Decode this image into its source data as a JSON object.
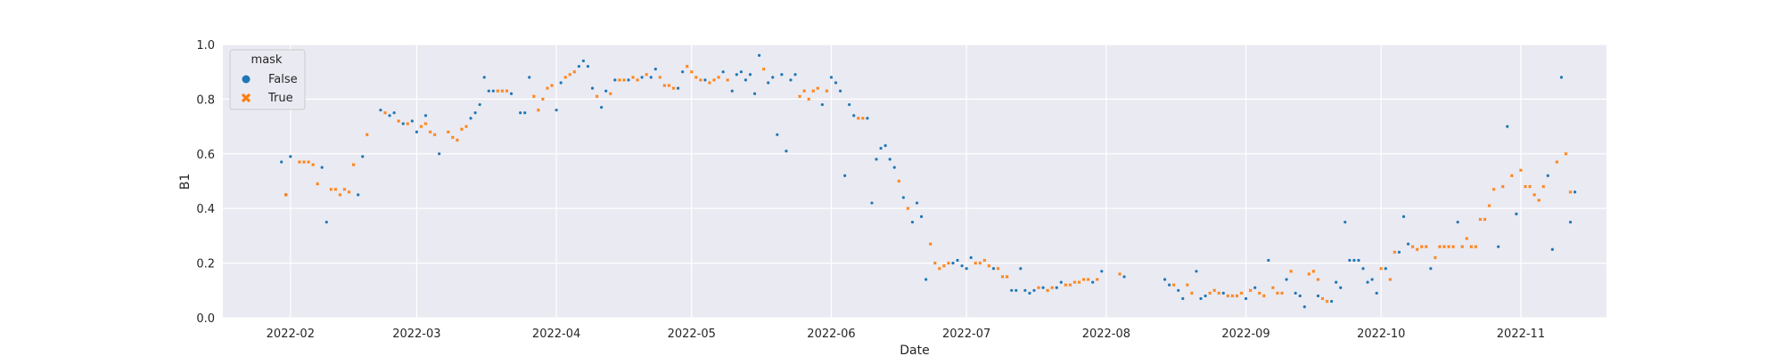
{
  "colors": {
    "false": "#1f77b4",
    "true": "#ff7f0e",
    "panel": "#eaeaf2",
    "grid": "#ffffff",
    "text": "#262626"
  },
  "chart_data": {
    "type": "scatter",
    "title": "",
    "xlabel": "Date",
    "ylabel": "B1",
    "xlim": [
      "2022-01-17",
      "2022-11-20"
    ],
    "ylim": [
      0,
      1
    ],
    "x_ticks": [
      "2022-02",
      "2022-03",
      "2022-04",
      "2022-05",
      "2022-06",
      "2022-07",
      "2022-08",
      "2022-09",
      "2022-10",
      "2022-11"
    ],
    "y_ticks": [
      "0.0",
      "0.2",
      "0.4",
      "0.6",
      "0.8",
      "1.0"
    ],
    "grid": true,
    "legend": {
      "title": "mask",
      "placement": "top-left",
      "entries": [
        "False",
        "True"
      ]
    },
    "series": [
      {
        "name": "False",
        "marker": "circle",
        "color": "#1f77b4",
        "points": [
          [
            "2022-01-30",
            0.57
          ],
          [
            "2022-01-31",
            0.45
          ],
          [
            "2022-02-01",
            0.59
          ],
          [
            "2022-02-08",
            0.55
          ],
          [
            "2022-02-09",
            0.35
          ],
          [
            "2022-02-16",
            0.45
          ],
          [
            "2022-02-17",
            0.59
          ],
          [
            "2022-02-21",
            0.76
          ],
          [
            "2022-02-23",
            0.74
          ],
          [
            "2022-02-24",
            0.75
          ],
          [
            "2022-02-26",
            0.71
          ],
          [
            "2022-02-28",
            0.72
          ],
          [
            "2022-03-01",
            0.68
          ],
          [
            "2022-03-03",
            0.74
          ],
          [
            "2022-03-06",
            0.6
          ],
          [
            "2022-03-13",
            0.73
          ],
          [
            "2022-03-14",
            0.75
          ],
          [
            "2022-03-15",
            0.78
          ],
          [
            "2022-03-16",
            0.88
          ],
          [
            "2022-03-17",
            0.83
          ],
          [
            "2022-03-18",
            0.83
          ],
          [
            "2022-03-22",
            0.82
          ],
          [
            "2022-03-24",
            0.75
          ],
          [
            "2022-03-25",
            0.75
          ],
          [
            "2022-03-26",
            0.88
          ],
          [
            "2022-04-01",
            0.76
          ],
          [
            "2022-04-02",
            0.86
          ],
          [
            "2022-04-06",
            0.92
          ],
          [
            "2022-04-07",
            0.94
          ],
          [
            "2022-04-08",
            0.92
          ],
          [
            "2022-04-09",
            0.84
          ],
          [
            "2022-04-11",
            0.77
          ],
          [
            "2022-04-12",
            0.83
          ],
          [
            "2022-04-14",
            0.87
          ],
          [
            "2022-04-17",
            0.87
          ],
          [
            "2022-04-20",
            0.88
          ],
          [
            "2022-04-22",
            0.88
          ],
          [
            "2022-04-23",
            0.91
          ],
          [
            "2022-04-28",
            0.84
          ],
          [
            "2022-04-29",
            0.9
          ],
          [
            "2022-05-04",
            0.87
          ],
          [
            "2022-05-08",
            0.9
          ],
          [
            "2022-05-10",
            0.83
          ],
          [
            "2022-05-11",
            0.89
          ],
          [
            "2022-05-12",
            0.9
          ],
          [
            "2022-05-13",
            0.87
          ],
          [
            "2022-05-14",
            0.89
          ],
          [
            "2022-05-15",
            0.82
          ],
          [
            "2022-05-16",
            0.96
          ],
          [
            "2022-05-18",
            0.86
          ],
          [
            "2022-05-19",
            0.88
          ],
          [
            "2022-05-20",
            0.67
          ],
          [
            "2022-05-21",
            0.89
          ],
          [
            "2022-05-22",
            0.61
          ],
          [
            "2022-05-23",
            0.87
          ],
          [
            "2022-05-24",
            0.89
          ],
          [
            "2022-05-30",
            0.78
          ],
          [
            "2022-06-01",
            0.88
          ],
          [
            "2022-06-02",
            0.86
          ],
          [
            "2022-06-03",
            0.83
          ],
          [
            "2022-06-04",
            0.52
          ],
          [
            "2022-06-05",
            0.78
          ],
          [
            "2022-06-06",
            0.74
          ],
          [
            "2022-06-09",
            0.73
          ],
          [
            "2022-06-10",
            0.42
          ],
          [
            "2022-06-11",
            0.58
          ],
          [
            "2022-06-12",
            0.62
          ],
          [
            "2022-06-13",
            0.63
          ],
          [
            "2022-06-14",
            0.58
          ],
          [
            "2022-06-15",
            0.55
          ],
          [
            "2022-06-17",
            0.44
          ],
          [
            "2022-06-19",
            0.35
          ],
          [
            "2022-06-20",
            0.42
          ],
          [
            "2022-06-21",
            0.37
          ],
          [
            "2022-06-22",
            0.14
          ],
          [
            "2022-06-28",
            0.2
          ],
          [
            "2022-06-29",
            0.21
          ],
          [
            "2022-06-30",
            0.19
          ],
          [
            "2022-07-01",
            0.18
          ],
          [
            "2022-07-02",
            0.22
          ],
          [
            "2022-07-07",
            0.18
          ],
          [
            "2022-07-11",
            0.1
          ],
          [
            "2022-07-12",
            0.1
          ],
          [
            "2022-07-13",
            0.18
          ],
          [
            "2022-07-14",
            0.1
          ],
          [
            "2022-07-15",
            0.09
          ],
          [
            "2022-07-16",
            0.1
          ],
          [
            "2022-07-18",
            0.11
          ],
          [
            "2022-07-21",
            0.11
          ],
          [
            "2022-07-22",
            0.13
          ],
          [
            "2022-07-29",
            0.13
          ],
          [
            "2022-07-31",
            0.17
          ],
          [
            "2022-08-05",
            0.15
          ],
          [
            "2022-08-14",
            0.14
          ],
          [
            "2022-08-15",
            0.12
          ],
          [
            "2022-08-17",
            0.1
          ],
          [
            "2022-08-18",
            0.07
          ],
          [
            "2022-08-21",
            0.17
          ],
          [
            "2022-08-22",
            0.07
          ],
          [
            "2022-08-23",
            0.08
          ],
          [
            "2022-08-27",
            0.09
          ],
          [
            "2022-09-01",
            0.07
          ],
          [
            "2022-09-03",
            0.11
          ],
          [
            "2022-09-06",
            0.21
          ],
          [
            "2022-09-10",
            0.14
          ],
          [
            "2022-09-12",
            0.09
          ],
          [
            "2022-09-13",
            0.08
          ],
          [
            "2022-09-14",
            0.04
          ],
          [
            "2022-09-17",
            0.08
          ],
          [
            "2022-09-20",
            0.06
          ],
          [
            "2022-09-21",
            0.13
          ],
          [
            "2022-09-22",
            0.11
          ],
          [
            "2022-09-23",
            0.35
          ],
          [
            "2022-09-24",
            0.21
          ],
          [
            "2022-09-25",
            0.21
          ],
          [
            "2022-09-26",
            0.21
          ],
          [
            "2022-09-27",
            0.18
          ],
          [
            "2022-09-28",
            0.13
          ],
          [
            "2022-09-29",
            0.14
          ],
          [
            "2022-09-30",
            0.09
          ],
          [
            "2022-10-02",
            0.18
          ],
          [
            "2022-10-05",
            0.24
          ],
          [
            "2022-10-06",
            0.37
          ],
          [
            "2022-10-07",
            0.27
          ],
          [
            "2022-10-12",
            0.18
          ],
          [
            "2022-10-18",
            0.35
          ],
          [
            "2022-10-27",
            0.26
          ],
          [
            "2022-10-29",
            0.7
          ],
          [
            "2022-10-31",
            0.38
          ],
          [
            "2022-11-07",
            0.52
          ],
          [
            "2022-11-08",
            0.25
          ],
          [
            "2022-11-10",
            0.88
          ],
          [
            "2022-11-12",
            0.35
          ],
          [
            "2022-11-13",
            0.46
          ]
        ]
      },
      {
        "name": "True",
        "marker": "x",
        "color": "#ff7f0e",
        "points": [
          [
            "2022-01-31",
            0.45
          ],
          [
            "2022-02-03",
            0.57
          ],
          [
            "2022-02-04",
            0.57
          ],
          [
            "2022-02-05",
            0.57
          ],
          [
            "2022-02-06",
            0.56
          ],
          [
            "2022-02-07",
            0.49
          ],
          [
            "2022-02-10",
            0.47
          ],
          [
            "2022-02-11",
            0.47
          ],
          [
            "2022-02-12",
            0.45
          ],
          [
            "2022-02-13",
            0.47
          ],
          [
            "2022-02-14",
            0.46
          ],
          [
            "2022-02-15",
            0.56
          ],
          [
            "2022-02-18",
            0.67
          ],
          [
            "2022-02-22",
            0.75
          ],
          [
            "2022-02-25",
            0.72
          ],
          [
            "2022-02-27",
            0.71
          ],
          [
            "2022-03-02",
            0.7
          ],
          [
            "2022-03-03",
            0.71
          ],
          [
            "2022-03-04",
            0.68
          ],
          [
            "2022-03-05",
            0.67
          ],
          [
            "2022-03-08",
            0.68
          ],
          [
            "2022-03-09",
            0.66
          ],
          [
            "2022-03-10",
            0.65
          ],
          [
            "2022-03-11",
            0.69
          ],
          [
            "2022-03-12",
            0.7
          ],
          [
            "2022-03-19",
            0.83
          ],
          [
            "2022-03-20",
            0.83
          ],
          [
            "2022-03-21",
            0.83
          ],
          [
            "2022-03-27",
            0.81
          ],
          [
            "2022-03-28",
            0.76
          ],
          [
            "2022-03-29",
            0.8
          ],
          [
            "2022-03-30",
            0.84
          ],
          [
            "2022-03-31",
            0.85
          ],
          [
            "2022-04-03",
            0.88
          ],
          [
            "2022-04-04",
            0.89
          ],
          [
            "2022-04-05",
            0.9
          ],
          [
            "2022-04-10",
            0.81
          ],
          [
            "2022-04-13",
            0.82
          ],
          [
            "2022-04-15",
            0.87
          ],
          [
            "2022-04-16",
            0.87
          ],
          [
            "2022-04-18",
            0.88
          ],
          [
            "2022-04-19",
            0.87
          ],
          [
            "2022-04-21",
            0.89
          ],
          [
            "2022-04-24",
            0.88
          ],
          [
            "2022-04-25",
            0.85
          ],
          [
            "2022-04-26",
            0.85
          ],
          [
            "2022-04-27",
            0.84
          ],
          [
            "2022-04-30",
            0.92
          ],
          [
            "2022-05-01",
            0.9
          ],
          [
            "2022-05-02",
            0.88
          ],
          [
            "2022-05-03",
            0.87
          ],
          [
            "2022-05-05",
            0.86
          ],
          [
            "2022-05-06",
            0.87
          ],
          [
            "2022-05-07",
            0.88
          ],
          [
            "2022-05-09",
            0.87
          ],
          [
            "2022-05-17",
            0.91
          ],
          [
            "2022-05-25",
            0.81
          ],
          [
            "2022-05-26",
            0.83
          ],
          [
            "2022-05-27",
            0.8
          ],
          [
            "2022-05-28",
            0.83
          ],
          [
            "2022-05-29",
            0.84
          ],
          [
            "2022-05-31",
            0.83
          ],
          [
            "2022-06-07",
            0.73
          ],
          [
            "2022-06-08",
            0.73
          ],
          [
            "2022-06-16",
            0.5
          ],
          [
            "2022-06-18",
            0.4
          ],
          [
            "2022-06-23",
            0.27
          ],
          [
            "2022-06-24",
            0.2
          ],
          [
            "2022-06-25",
            0.18
          ],
          [
            "2022-06-26",
            0.19
          ],
          [
            "2022-06-27",
            0.2
          ],
          [
            "2022-07-03",
            0.2
          ],
          [
            "2022-07-04",
            0.2
          ],
          [
            "2022-07-05",
            0.21
          ],
          [
            "2022-07-06",
            0.19
          ],
          [
            "2022-07-08",
            0.18
          ],
          [
            "2022-07-09",
            0.15
          ],
          [
            "2022-07-10",
            0.15
          ],
          [
            "2022-07-17",
            0.11
          ],
          [
            "2022-07-19",
            0.1
          ],
          [
            "2022-07-20",
            0.11
          ],
          [
            "2022-07-23",
            0.12
          ],
          [
            "2022-07-24",
            0.12
          ],
          [
            "2022-07-25",
            0.13
          ],
          [
            "2022-07-26",
            0.13
          ],
          [
            "2022-07-27",
            0.14
          ],
          [
            "2022-07-28",
            0.14
          ],
          [
            "2022-07-30",
            0.14
          ],
          [
            "2022-08-04",
            0.16
          ],
          [
            "2022-08-16",
            0.12
          ],
          [
            "2022-08-19",
            0.12
          ],
          [
            "2022-08-20",
            0.09
          ],
          [
            "2022-08-24",
            0.09
          ],
          [
            "2022-08-25",
            0.1
          ],
          [
            "2022-08-26",
            0.09
          ],
          [
            "2022-08-28",
            0.08
          ],
          [
            "2022-08-29",
            0.08
          ],
          [
            "2022-08-30",
            0.08
          ],
          [
            "2022-08-31",
            0.09
          ],
          [
            "2022-09-02",
            0.1
          ],
          [
            "2022-09-04",
            0.09
          ],
          [
            "2022-09-05",
            0.08
          ],
          [
            "2022-09-07",
            0.11
          ],
          [
            "2022-09-08",
            0.09
          ],
          [
            "2022-09-09",
            0.09
          ],
          [
            "2022-09-11",
            0.17
          ],
          [
            "2022-09-15",
            0.16
          ],
          [
            "2022-09-16",
            0.17
          ],
          [
            "2022-09-17",
            0.14
          ],
          [
            "2022-09-18",
            0.07
          ],
          [
            "2022-09-19",
            0.06
          ],
          [
            "2022-10-01",
            0.18
          ],
          [
            "2022-10-03",
            0.14
          ],
          [
            "2022-10-04",
            0.24
          ],
          [
            "2022-10-08",
            0.26
          ],
          [
            "2022-10-09",
            0.25
          ],
          [
            "2022-10-10",
            0.26
          ],
          [
            "2022-10-11",
            0.26
          ],
          [
            "2022-10-13",
            0.22
          ],
          [
            "2022-10-14",
            0.26
          ],
          [
            "2022-10-15",
            0.26
          ],
          [
            "2022-10-16",
            0.26
          ],
          [
            "2022-10-17",
            0.26
          ],
          [
            "2022-10-19",
            0.26
          ],
          [
            "2022-10-20",
            0.29
          ],
          [
            "2022-10-21",
            0.26
          ],
          [
            "2022-10-22",
            0.26
          ],
          [
            "2022-10-23",
            0.36
          ],
          [
            "2022-10-24",
            0.36
          ],
          [
            "2022-10-25",
            0.41
          ],
          [
            "2022-10-26",
            0.47
          ],
          [
            "2022-10-28",
            0.48
          ],
          [
            "2022-10-30",
            0.52
          ],
          [
            "2022-11-01",
            0.54
          ],
          [
            "2022-11-02",
            0.48
          ],
          [
            "2022-11-03",
            0.48
          ],
          [
            "2022-11-04",
            0.45
          ],
          [
            "2022-11-05",
            0.43
          ],
          [
            "2022-11-06",
            0.48
          ],
          [
            "2022-11-09",
            0.57
          ],
          [
            "2022-11-11",
            0.6
          ],
          [
            "2022-11-12",
            0.46
          ]
        ]
      }
    ]
  }
}
